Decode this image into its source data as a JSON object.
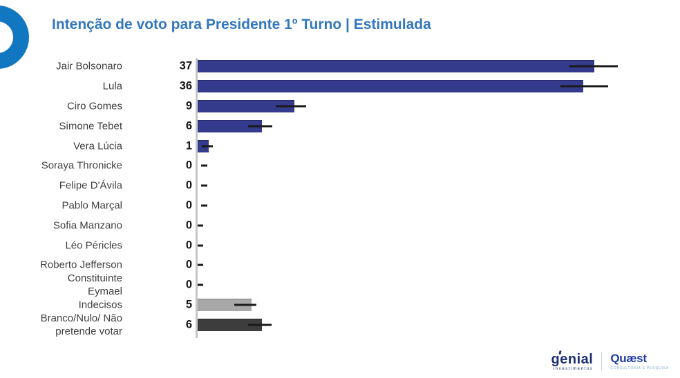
{
  "title": "Intenção de voto para Presidente 1º Turno | Estimulada",
  "colors": {
    "title": "#3377bd",
    "ring": "#1177c0",
    "axis": "#c6c6c6",
    "error": "#1a1a1a",
    "bar_primary": "#343a8c",
    "bar_undecided": "#a8a8a8",
    "bar_blank": "#3d3d3d"
  },
  "branding": {
    "genial": {
      "wordmark": "genial",
      "sub": "investimentos"
    },
    "quaest": {
      "wordmark": "Quæst",
      "sub": "CONSULTORIA E PESQUISA"
    }
  },
  "chart_data": {
    "type": "bar",
    "orientation": "horizontal",
    "title": "Intenção de voto para Presidente 1º Turno | Estimulada",
    "xlim": [
      0,
      45
    ],
    "grid": false,
    "legend": false,
    "error_bars": true,
    "categories": [
      "Jair Bolsonaro",
      "Lula",
      "Ciro Gomes",
      "Simone Tebet",
      "Vera Lúcia",
      "Soraya Thronicke",
      "Felipe D'Ávila",
      "Pablo Marçal",
      "Sofia Manzano",
      "Léo Péricles",
      "Roberto Jefferson",
      "Constituinte Eymael",
      "Indecisos",
      "Branco/Nulo/ Não pretende votar"
    ],
    "values": [
      37,
      36,
      9,
      6,
      1,
      0,
      0,
      0,
      0,
      0,
      0,
      0,
      5,
      6
    ],
    "rows": [
      {
        "label": "Jair Bolsonaro",
        "value": 37,
        "error_range": [
          34.7,
          39.2
        ],
        "color": "bar_primary"
      },
      {
        "label": "Lula",
        "value": 36,
        "error_range": [
          33.9,
          38.3
        ],
        "color": "bar_primary"
      },
      {
        "label": "Ciro Gomes",
        "value": 9,
        "error_range": [
          7.3,
          10.1
        ],
        "color": "bar_primary"
      },
      {
        "label": "Simone Tebet",
        "value": 6,
        "error_range": [
          4.7,
          7.0
        ],
        "color": "bar_primary"
      },
      {
        "label": "Vera Lúcia",
        "value": 1,
        "error_range": [
          0.4,
          1.4
        ],
        "color": "bar_primary"
      },
      {
        "label": "Soraya Thronicke",
        "value": 0,
        "error_range": [
          0.3,
          0.9
        ],
        "color": "bar_primary"
      },
      {
        "label": "Felipe D'Ávila",
        "value": 0,
        "error_range": [
          0.3,
          0.9
        ],
        "color": "bar_primary"
      },
      {
        "label": "Pablo Marçal",
        "value": 0,
        "error_range": [
          0.3,
          0.9
        ],
        "color": "bar_primary"
      },
      {
        "label": "Sofia Manzano",
        "value": 0,
        "error_range": [
          0,
          0.5
        ],
        "color": "bar_primary"
      },
      {
        "label": "Léo Péricles",
        "value": 0,
        "error_range": [
          0,
          0.5
        ],
        "color": "bar_primary"
      },
      {
        "label": "Roberto Jefferson",
        "value": 0,
        "error_range": [
          0,
          0.5
        ],
        "color": "bar_primary"
      },
      {
        "label": "Constituinte\nEymael",
        "value": 0,
        "error_range": [
          0,
          0.5
        ],
        "color": "bar_primary"
      },
      {
        "label": "Indecisos",
        "value": 5,
        "error_range": [
          3.4,
          5.5
        ],
        "color": "bar_undecided"
      },
      {
        "label": "Branco/Nulo/ Não\npretende votar",
        "value": 6,
        "error_range": [
          4.7,
          6.9
        ],
        "color": "bar_blank"
      }
    ]
  }
}
